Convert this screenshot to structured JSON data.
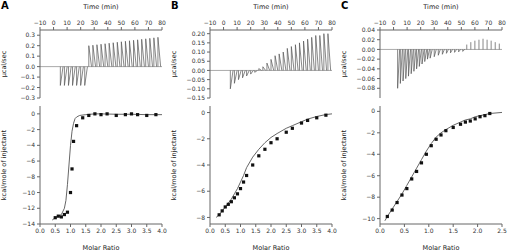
{
  "chart_data": [
    {
      "type": "spikes",
      "title": "A",
      "xlabel": "Time (min)",
      "ylabel": "μcal/sec",
      "xlim": [
        -10,
        80
      ],
      "xticks": [
        {
          "value": -10,
          "label": "−10"
        },
        0,
        10,
        20,
        30,
        40,
        50,
        60,
        70,
        80
      ],
      "ylim": [
        -0.3,
        0.35
      ],
      "yticks": [
        {
          "value": -0.3,
          "label": "−0.3"
        },
        {
          "value": -0.2,
          "label": "−0.2"
        },
        {
          "value": -0.1,
          "label": "−0.1"
        },
        {
          "value": 0.0,
          "label": "0.0"
        },
        0.1,
        0.2,
        0.3
      ],
      "baseline": 0,
      "series": [
        {
          "type": "spikes",
          "color": "#555555",
          "x": [
            5,
            8,
            11,
            14,
            17,
            20,
            23,
            26,
            29,
            32,
            35,
            38,
            41,
            44,
            47,
            50,
            53,
            56,
            59,
            62,
            65,
            68,
            71,
            74,
            77
          ],
          "values": [
            -0.18,
            -0.18,
            -0.18,
            -0.18,
            -0.18,
            -0.18,
            -0.18,
            0.2,
            0.2047058824,
            0.2094117647,
            0.2141176471,
            0.2188235294,
            0.2235294118,
            0.2282352941,
            0.2329411765,
            0.2376470588,
            0.2423529412,
            0.2470588235,
            0.2517647059,
            0.2564705882,
            0.2611764706,
            0.2658823529,
            0.2705882353,
            0.2752941176,
            0.28
          ],
          "spike_decay": [
            2.0,
            2.0,
            2.0,
            2.0,
            2.0,
            2.0,
            2.0,
            2.0,
            2.0,
            2.0,
            2.0,
            2.0,
            2.0,
            2.0,
            2.0,
            2.0,
            2.0,
            2.0,
            2.0,
            2.0,
            2.0,
            2.0,
            2.0,
            2.0,
            2.0
          ]
        }
      ]
    },
    {
      "type": "scatter",
      "xlabel": "Molar Ratio",
      "ylabel": "kcal/mole of injectant",
      "xlim": [
        0.0,
        4.0
      ],
      "xticks": [
        {
          "value": 0.0,
          "label": "0.0"
        },
        0.5,
        {
          "value": 1.0,
          "label": "1.0"
        },
        1.5,
        {
          "value": 2.0,
          "label": "2.0"
        },
        2.5,
        {
          "value": 3.0,
          "label": "3.0"
        },
        3.5,
        {
          "value": 4.0,
          "label": "4.0"
        }
      ],
      "ylim": [
        -14,
        1
      ],
      "yticks": [
        {
          "value": -14,
          "label": "−14"
        },
        {
          "value": -12,
          "label": "−12"
        },
        {
          "value": -10,
          "label": "−10"
        },
        {
          "value": -8,
          "label": "−8"
        },
        {
          "value": -6,
          "label": "−6"
        },
        {
          "value": -4,
          "label": "−4"
        },
        {
          "value": -2,
          "label": "−2"
        },
        0
      ],
      "series": [
        {
          "type": "line",
          "color": "#555555",
          "x": [
            0.4,
            0.5,
            0.6,
            0.7,
            0.8,
            0.85,
            0.9,
            0.95,
            1.0,
            1.05,
            1.1,
            1.15,
            1.2,
            1.3,
            1.5,
            1.8,
            2.0,
            2.5,
            3.0,
            3.5,
            4.0
          ],
          "values": [
            -13.5,
            -13.2,
            -13.0,
            -12.8,
            -12.0,
            -11.0,
            -9.0,
            -6.5,
            -4.0,
            -2.2,
            -1.2,
            -0.6,
            -0.4,
            -0.2,
            -0.1,
            0.0,
            0.0,
            -0.05,
            -0.05,
            -0.1,
            -0.1
          ]
        },
        {
          "type": "scatter",
          "color": "#111111",
          "marker": "square",
          "x": [
            0.5,
            0.6,
            0.7,
            0.8,
            0.9,
            1.0,
            1.05,
            1.1,
            1.2,
            1.4,
            1.6,
            1.8,
            2.0,
            2.2,
            2.5,
            2.8,
            3.0,
            3.2,
            3.5,
            3.8
          ],
          "values": [
            -13.2,
            -13.0,
            -13.1,
            -12.8,
            -12.5,
            -10.0,
            -7.0,
            -3.5,
            -1.5,
            -0.5,
            -0.2,
            0.0,
            -0.1,
            0.0,
            -0.2,
            -0.1,
            0.0,
            -0.1,
            -0.2,
            -0.1
          ]
        }
      ]
    },
    {
      "type": "spikes",
      "title": "B",
      "xlabel": "Time (min)",
      "ylabel": "μcal/sec",
      "xlim": [
        -10,
        80
      ],
      "xticks": [
        {
          "value": -10,
          "label": "−10"
        },
        0,
        10,
        20,
        30,
        40,
        50,
        60,
        70,
        80
      ],
      "ylim": [
        -0.15,
        0.22
      ],
      "yticks": [
        {
          "value": -0.15,
          "label": "−0.15"
        },
        {
          "value": -0.1,
          "label": "−0.10"
        },
        {
          "value": -0.05,
          "label": "−0.05"
        },
        {
          "value": 0.0,
          "label": "0.00"
        },
        0.05,
        {
          "value": 0.1,
          "label": "0.10"
        },
        0.15,
        {
          "value": 0.2,
          "label": "0.20"
        }
      ],
      "baseline": 0,
      "series": [
        {
          "type": "spikes",
          "color": "#555555",
          "x": [
            5,
            8,
            11,
            14,
            17,
            20,
            23,
            26,
            29,
            32,
            35,
            38,
            41,
            44,
            47,
            50,
            53,
            56,
            59,
            62,
            65,
            68,
            71,
            74,
            77
          ],
          "values": [
            -0.1,
            -0.07,
            -0.05,
            -0.04,
            -0.03,
            -0.02,
            -0.01,
            0.01,
            0.02,
            0.04,
            0.06,
            0.08,
            0.09,
            0.1,
            0.12,
            0.13,
            0.14,
            0.15,
            0.16,
            0.17,
            0.18,
            0.19,
            0.19,
            0.2,
            0.2
          ],
          "spike_decay": [
            2.0,
            2.0,
            2.0,
            2.0,
            2.0,
            2.0,
            2.0,
            2.0,
            2.0,
            2.0,
            2.0,
            2.0,
            2.0,
            2.0,
            2.0,
            2.0,
            2.0,
            2.0,
            2.0,
            2.0,
            2.0,
            2.0,
            2.0,
            2.0,
            2.0
          ]
        }
      ]
    },
    {
      "type": "scatter",
      "xlabel": "Molar Ratio",
      "ylabel": "kcal/mole of injectant",
      "xlim": [
        0.0,
        4.0
      ],
      "xticks": [
        {
          "value": 0.0,
          "label": "0.0"
        },
        0.5,
        {
          "value": 1.0,
          "label": "1.0"
        },
        1.5,
        {
          "value": 2.0,
          "label": "2.0"
        },
        2.5,
        {
          "value": 3.0,
          "label": "3.0"
        },
        3.5,
        {
          "value": 4.0,
          "label": "4.0"
        }
      ],
      "ylim": [
        -8.5,
        0.5
      ],
      "yticks": [
        {
          "value": -8,
          "label": "−8"
        },
        {
          "value": -6,
          "label": "−6"
        },
        {
          "value": -4,
          "label": "−4"
        },
        {
          "value": -2,
          "label": "−2"
        },
        0
      ],
      "series": [
        {
          "type": "line",
          "color": "#555555",
          "x": [
            0.2,
            0.3,
            0.4,
            0.5,
            0.6,
            0.7,
            0.8,
            0.9,
            1.0,
            1.1,
            1.2,
            1.4,
            1.6,
            1.8,
            2.0,
            2.2,
            2.5,
            2.7,
            3.0,
            3.2,
            3.5,
            3.8,
            4.0
          ],
          "values": [
            -8.0,
            -7.8,
            -7.5,
            -7.2,
            -6.9,
            -6.6,
            -6.2,
            -5.8,
            -5.3,
            -4.8,
            -4.2,
            -3.4,
            -2.8,
            -2.3,
            -1.9,
            -1.6,
            -1.2,
            -1.0,
            -0.7,
            -0.5,
            -0.3,
            -0.15,
            -0.1
          ]
        },
        {
          "type": "scatter",
          "color": "#111111",
          "marker": "square",
          "x": [
            0.3,
            0.4,
            0.5,
            0.6,
            0.7,
            0.8,
            0.9,
            1.0,
            1.1,
            1.2,
            1.4,
            1.6,
            1.8,
            2.0,
            2.2,
            2.5,
            2.7,
            3.0,
            3.2,
            3.5,
            3.8
          ],
          "values": [
            -7.8,
            -7.5,
            -7.2,
            -7.0,
            -6.8,
            -6.5,
            -6.2,
            -5.8,
            -5.3,
            -4.8,
            -4.0,
            -3.3,
            -2.8,
            -2.3,
            -2.0,
            -1.5,
            -1.2,
            -0.8,
            -0.6,
            -0.4,
            -0.2
          ]
        }
      ]
    },
    {
      "type": "spikes",
      "title": "C",
      "xlabel": "Time (min)",
      "ylabel": "μcal/sec",
      "xlim": [
        -10,
        80
      ],
      "xticks": [
        {
          "value": -10,
          "label": "−10"
        },
        0,
        10,
        20,
        30,
        40,
        50,
        60,
        70,
        80
      ],
      "ylim": [
        -0.1,
        0.04
      ],
      "yticks": [
        {
          "value": -0.08,
          "label": "−0.08"
        },
        {
          "value": -0.06,
          "label": "−0.06"
        },
        {
          "value": -0.04,
          "label": "−0.04"
        },
        {
          "value": -0.02,
          "label": "−0.02"
        },
        {
          "value": 0.0,
          "label": "0.00"
        },
        0.02,
        0.04
      ],
      "baseline": 0,
      "series": [
        {
          "type": "spikes",
          "color": "#555555",
          "x": [
            3,
            5,
            7,
            9,
            11,
            13,
            15,
            17,
            19,
            21,
            23,
            25,
            27,
            30,
            33,
            36,
            39,
            42,
            45,
            48,
            51,
            54,
            57,
            60,
            63,
            66,
            69,
            72,
            75,
            78
          ],
          "values": [
            -0.08,
            -0.07,
            -0.065,
            -0.06,
            -0.055,
            -0.05,
            -0.045,
            -0.04,
            -0.035,
            -0.03,
            -0.025,
            -0.02,
            -0.018,
            -0.015,
            -0.012,
            -0.01,
            -0.008,
            -0.007,
            -0.006,
            -0.005,
            -0.004,
            0.01,
            0.015,
            0.018,
            0.02,
            0.022,
            0.02,
            0.018,
            0.015,
            0.012
          ],
          "spike_decay": [
            1.5,
            1.5,
            1.5,
            1.5,
            1.5,
            1.5,
            1.5,
            1.5,
            1.5,
            1.5,
            1.5,
            1.5,
            1.5,
            1.5,
            1.5,
            1.5,
            1.5,
            1.5,
            1.5,
            1.5,
            1.5,
            null,
            null,
            null,
            null,
            null,
            null,
            null,
            null,
            null
          ]
        }
      ]
    },
    {
      "type": "scatter",
      "xlabel": "Molar Ratio",
      "ylabel": "kcal/mole of injectant",
      "xlim": [
        0.0,
        2.5
      ],
      "xticks": [
        {
          "value": 0.0,
          "label": "0.0"
        },
        0.5,
        {
          "value": 1.0,
          "label": "1.0"
        },
        1.5,
        {
          "value": 2.0,
          "label": "2.0"
        },
        2.5
      ],
      "ylim": [
        -10.5,
        0.5
      ],
      "yticks": [
        {
          "value": -10,
          "label": "−10"
        },
        {
          "value": -8,
          "label": "−8"
        },
        {
          "value": -6,
          "label": "−6"
        },
        {
          "value": -4,
          "label": "−4"
        },
        {
          "value": -2,
          "label": "−2"
        },
        0
      ],
      "series": [
        {
          "type": "line",
          "color": "#555555",
          "x": [
            0.1,
            0.15,
            0.25,
            0.35,
            0.45,
            0.55,
            0.65,
            0.75,
            0.85,
            0.95,
            1.05,
            1.15,
            1.25,
            1.35,
            1.5,
            1.65,
            1.75,
            1.85,
            1.95,
            2.05,
            2.15,
            2.25,
            2.5
          ],
          "values": [
            -10.2,
            -9.8,
            -9.1,
            -8.4,
            -7.7,
            -6.9,
            -6.1,
            -5.3,
            -4.5,
            -3.7,
            -3.0,
            -2.4,
            -2.0,
            -1.7,
            -1.3,
            -1.0,
            -0.8,
            -0.7,
            -0.5,
            -0.4,
            -0.3,
            -0.2,
            -0.1
          ]
        },
        {
          "type": "scatter",
          "color": "#111111",
          "marker": "square",
          "x": [
            0.15,
            0.25,
            0.35,
            0.45,
            0.55,
            0.65,
            0.75,
            0.85,
            0.95,
            1.05,
            1.15,
            1.25,
            1.35,
            1.5,
            1.65,
            1.75,
            1.85,
            1.95,
            2.05,
            2.15,
            2.25
          ],
          "values": [
            -9.8,
            -9.2,
            -8.5,
            -7.8,
            -7.2,
            -6.3,
            -5.6,
            -4.8,
            -4.0,
            -3.2,
            -2.6,
            -2.2,
            -1.8,
            -1.5,
            -1.2,
            -1.0,
            -0.9,
            -0.7,
            -0.5,
            -0.4,
            -0.2
          ]
        }
      ]
    }
  ]
}
